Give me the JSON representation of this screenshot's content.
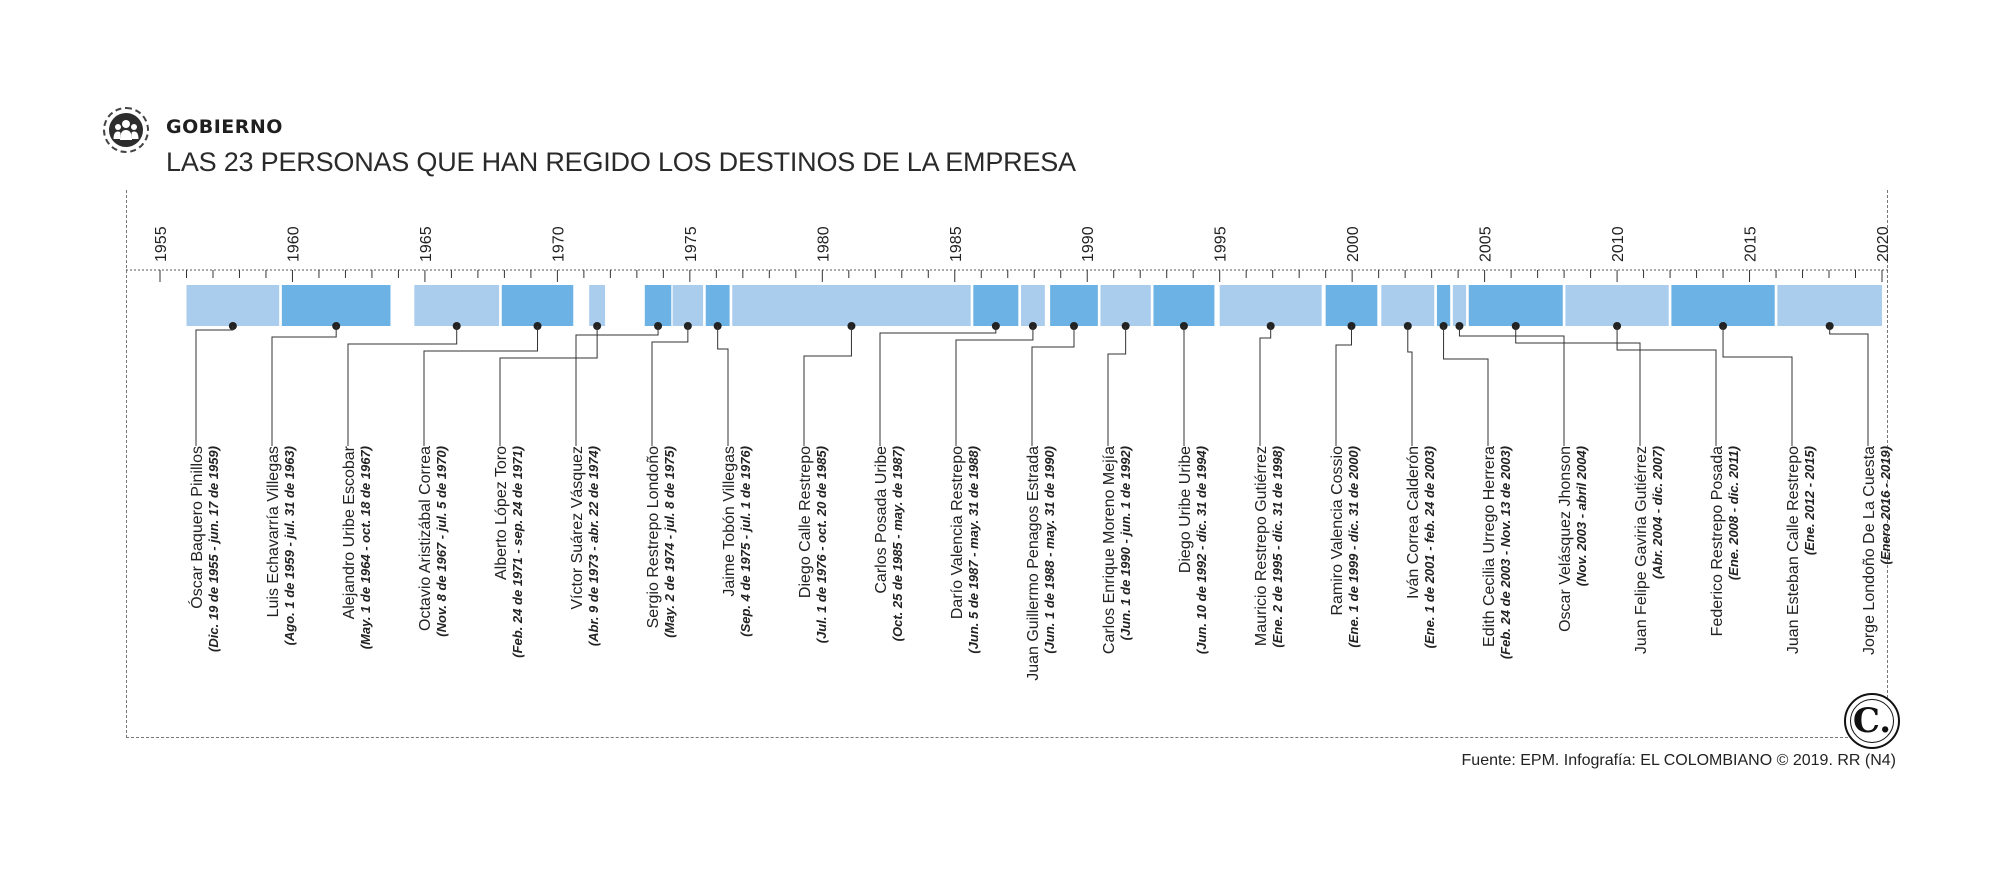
{
  "header": {
    "section": "GOBIERNO",
    "title": "LAS 23 PERSONAS QUE HAN REGIDO LOS DESTINOS DE LA EMPRESA",
    "icon": "people-group-icon"
  },
  "timeline": {
    "year_start": 1955,
    "year_end": 2020,
    "year_labels": [
      "1955",
      "1960",
      "1965",
      "1970",
      "1975",
      "1980",
      "1985",
      "1990",
      "1995",
      "2000",
      "2005",
      "2010",
      "2015",
      "2020"
    ],
    "colors": {
      "light": "#aacdee",
      "dark": "#6cb2e4",
      "line": "#333333"
    },
    "people": [
      {
        "name": "Óscar Baquero Pinillos",
        "dates": "(Dic. 19 de 1955 - jun. 17 de 1959)",
        "start": 1956.0,
        "end": 1959.5,
        "color": "light"
      },
      {
        "name": "Luis Echavarría Villegas",
        "dates": "(Ago. 1 de 1959 - jul. 31 de 1963)",
        "start": 1959.6,
        "end": 1963.7,
        "color": "dark"
      },
      {
        "name": "Alejandro Uribe Escobar",
        "dates": "(May. 1 de 1964 - oct. 18 de 1967)",
        "start": 1964.6,
        "end": 1967.8,
        "color": "light"
      },
      {
        "name": "Octavio Aristizábal Correa",
        "dates": "(Nov. 8 de 1967 - jul. 5 de 1970)",
        "start": 1967.9,
        "end": 1970.6,
        "color": "dark"
      },
      {
        "name": "Alberto López Toro",
        "dates": "(Feb. 24 de 1971 - sep. 24 de 1971)",
        "start": 1971.2,
        "end": 1971.8,
        "color": "light"
      },
      {
        "name": "Víctor Suárez Vásquez",
        "dates": "(Abr. 9 de 1973 - abr. 22 de 1974)",
        "start": 1973.3,
        "end": 1974.3,
        "color": "dark"
      },
      {
        "name": "Sergio Restrepo Londoño",
        "dates": "(May. 2 de 1974 - jul. 8 de 1975)",
        "start": 1974.35,
        "end": 1975.5,
        "color": "light"
      },
      {
        "name": "Jaime Tobón Villegas",
        "dates": "(Sep. 4 de 1975 - jul. 1 de 1976)",
        "start": 1975.6,
        "end": 1976.5,
        "color": "dark"
      },
      {
        "name": "Diego Calle Restrepo",
        "dates": "(Jul. 1 de 1976 - oct. 20 de 1985)",
        "start": 1976.6,
        "end": 1985.6,
        "color": "light"
      },
      {
        "name": "Carlos Posada Uribe",
        "dates": "(Oct. 25 de 1985 - may. de 1987)",
        "start": 1985.7,
        "end": 1987.4,
        "color": "dark"
      },
      {
        "name": "Darío Valencia Restrepo",
        "dates": "(Jun. 5 de 1987 - may. 31 de 1988)",
        "start": 1987.5,
        "end": 1988.4,
        "color": "light"
      },
      {
        "name": "Juan Guillermo Penagos Estrada",
        "dates": "(Jun. 1 de 1988 - may. 31 de 1990)",
        "start": 1988.6,
        "end": 1990.4,
        "color": "dark"
      },
      {
        "name": "Carlos Enrique Moreno Mejía",
        "dates": "(Jun. 1 de 1990 - jun. 1 de 1992)",
        "start": 1990.5,
        "end": 1992.4,
        "color": "light"
      },
      {
        "name": "Diego Uribe Uribe",
        "dates": "(Jun. 10 de 1992 - dic. 31 de 1994)",
        "start": 1992.5,
        "end": 1994.8,
        "color": "dark"
      },
      {
        "name": "Mauricio Restrepo Gutiérrez",
        "dates": "(Ene. 2 de 1995 - dic. 31 de 1998)",
        "start": 1995.0,
        "end": 1998.85,
        "color": "light"
      },
      {
        "name": "Ramiro Valencia Cossio",
        "dates": "(Ene. 1 de 1999 - dic. 31 de 2000)",
        "start": 1999.0,
        "end": 2000.95,
        "color": "dark"
      },
      {
        "name": "Iván Correa Calderón",
        "dates": "(Ene. 1 de 2001 - feb. 24 de 2003)",
        "start": 2001.1,
        "end": 2003.1,
        "color": "light"
      },
      {
        "name": "Edith Cecilia Urrego Herrera",
        "dates": "(Feb. 24 de 2003 - Nov. 13 de 2003)",
        "start": 2003.2,
        "end": 2003.7,
        "color": "dark"
      },
      {
        "name": "Oscar Velásquez Jhonson",
        "dates": "(Nov. 2003 - abril 2004)",
        "start": 2003.8,
        "end": 2004.3,
        "color": "light"
      },
      {
        "name": "Juan Felipe Gaviria Gutiérrez",
        "dates": "(Abr. 2004 - dic. 2007)",
        "start": 2004.4,
        "end": 2007.95,
        "color": "dark"
      },
      {
        "name": "Federico Restrepo Posada",
        "dates": "(Ene. 2008 - dic. 2011)",
        "start": 2008.05,
        "end": 2011.95,
        "color": "light"
      },
      {
        "name": "Juan Esteban Calle Restrepo",
        "dates": "(Ene. 2012 - 2015)",
        "start": 2012.05,
        "end": 2015.95,
        "color": "dark"
      },
      {
        "name": "Jorge Londoño De La Cuesta",
        "dates": "(Enero 2016 - 2019)",
        "start": 2016.05,
        "end": 2020.0,
        "color": "light"
      }
    ]
  },
  "footer": {
    "source": "Fuente: EPM. Infografía: EL COLOMBIANO © 2019. RR (N4)",
    "logo_letter": "C.",
    "logo_icon": "el-colombiano-logo-icon"
  }
}
